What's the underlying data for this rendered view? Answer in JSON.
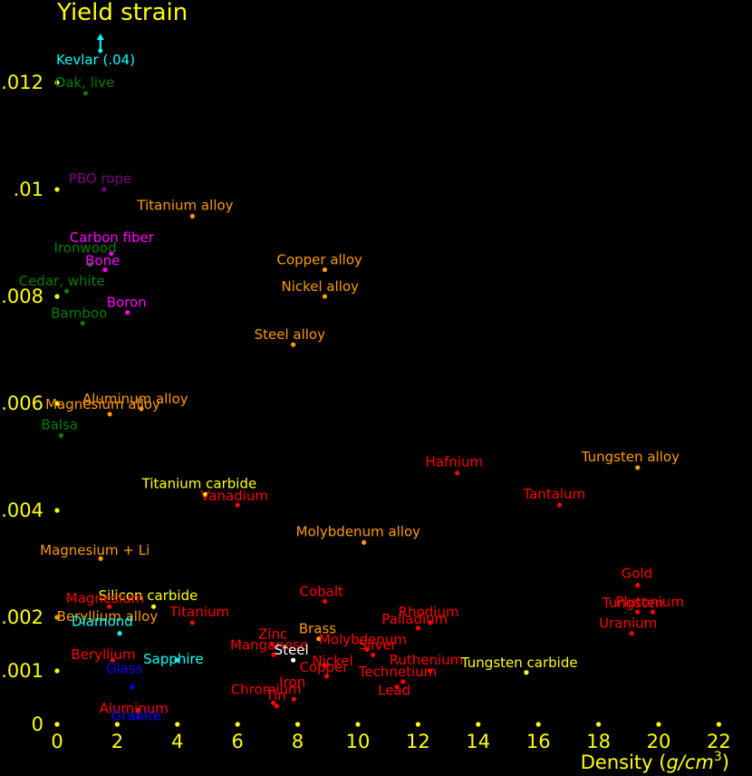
{
  "chart_data": {
    "type": "scatter",
    "title": "Yield strain",
    "xlabel": {
      "prefix": "Density (",
      "unit": "g/cm",
      "exponent": "3",
      "suffix": ")"
    },
    "xlim": [
      0,
      22
    ],
    "ylim": [
      0,
      0.012
    ],
    "x_ticks": [
      {
        "v": 0,
        "label": "0"
      },
      {
        "v": 2,
        "label": "2"
      },
      {
        "v": 4,
        "label": "4"
      },
      {
        "v": 6,
        "label": "6"
      },
      {
        "v": 8,
        "label": "8"
      },
      {
        "v": 10,
        "label": "10"
      },
      {
        "v": 12,
        "label": "12"
      },
      {
        "v": 14,
        "label": "14"
      },
      {
        "v": 16,
        "label": "16"
      },
      {
        "v": 18,
        "label": "18"
      },
      {
        "v": 20,
        "label": "20"
      },
      {
        "v": 22,
        "label": "22"
      }
    ],
    "y_ticks": [
      {
        "v": 0,
        "label": "0"
      },
      {
        "v": 0.001,
        "label": ".001"
      },
      {
        "v": 0.002,
        "label": ".002"
      },
      {
        "v": 0.004,
        "label": ".004"
      },
      {
        "v": 0.006,
        "label": ".006"
      },
      {
        "v": 0.008,
        "label": ".008"
      },
      {
        "v": 0.01,
        "label": ".01"
      },
      {
        "v": 0.012,
        "label": ".012"
      }
    ],
    "axis_color": "#ffff00",
    "grid": false,
    "off_scale_arrow": {
      "label": "Kevlar (.04)",
      "x": 1.44,
      "color": "#00ffff"
    },
    "points": [
      {
        "label": "Oak, live",
        "x": 0.95,
        "y": 0.0118,
        "color": "#008000"
      },
      {
        "label": "PBO rope",
        "x": 1.56,
        "y": 0.01,
        "color": "#800080"
      },
      {
        "label": "Titanium alloy",
        "x": 4.5,
        "y": 0.0095,
        "color": "#ff9900"
      },
      {
        "label": "Carbon fiber",
        "x": 1.8,
        "y": 0.0088,
        "color": "#ff00ff"
      },
      {
        "label": "Ironwood",
        "x": 1.1,
        "y": 0.0086,
        "color": "#008000"
      },
      {
        "label": "Bone",
        "x": 1.6,
        "y": 0.0085,
        "color": "#ff00ff"
      },
      {
        "label": "Copper alloy",
        "x": 8.9,
        "y": 0.0085,
        "color": "#ff9900"
      },
      {
        "label": "Cedar, white",
        "x": 0.32,
        "y": 0.0081,
        "color": "#008000"
      },
      {
        "label": "Nickel alloy",
        "x": 8.9,
        "y": 0.008,
        "color": "#ff9900"
      },
      {
        "label": "Boron",
        "x": 2.34,
        "y": 0.0077,
        "color": "#ff00ff"
      },
      {
        "label": "Bamboo",
        "x": 0.85,
        "y": 0.0075,
        "color": "#008000"
      },
      {
        "label": "Steel alloy",
        "x": 7.85,
        "y": 0.0071,
        "color": "#ff9900"
      },
      {
        "label": "Aluminum alloy",
        "x": 2.8,
        "y": 0.0059,
        "color": "#ff9900"
      },
      {
        "label": "Magnesium alloy",
        "x": 1.75,
        "y": 0.0058,
        "color": "#ff9900"
      },
      {
        "label": "Balsa",
        "x": 0.13,
        "y": 0.0054,
        "color": "#008000"
      },
      {
        "label": "Hafnium",
        "x": 13.3,
        "y": 0.0047,
        "color": "#ff0000"
      },
      {
        "label": "Tungsten alloy",
        "x": 19.3,
        "y": 0.0048,
        "color": "#ff9900"
      },
      {
        "label": "Titanium carbide",
        "x": 4.93,
        "y": 0.0043,
        "color": "#ffff00"
      },
      {
        "label": "Vanadium",
        "x": 6.0,
        "y": 0.0041,
        "color": "#ff0000"
      },
      {
        "label": "Tantalum",
        "x": 16.7,
        "y": 0.0041,
        "color": "#ff0000"
      },
      {
        "label": "Molybdenum alloy",
        "x": 10.2,
        "y": 0.0034,
        "color": "#ff9900"
      },
      {
        "label": "Magnesium + Li",
        "x": 1.45,
        "y": 0.0031,
        "color": "#ff9900"
      },
      {
        "label": "Gold",
        "x": 19.3,
        "y": 0.0026,
        "color": "#ff0000"
      },
      {
        "label": "Cobalt",
        "x": 8.9,
        "y": 0.0023,
        "color": "#ff0000"
      },
      {
        "label": "Silicon carbide",
        "x": 3.21,
        "y": 0.0022,
        "color": "#ffff00"
      },
      {
        "label": "Magnesium",
        "x": 1.74,
        "y": 0.0022,
        "color": "#ff0000"
      },
      {
        "label": "Plutonium",
        "x": 19.8,
        "y": 0.0021,
        "color": "#ff0000"
      },
      {
        "label": "Tungsten",
        "x": 19.3,
        "y": 0.0021,
        "color": "#ff0000"
      },
      {
        "label": "Titanium",
        "x": 4.5,
        "y": 0.0019,
        "color": "#ff0000"
      },
      {
        "label": "Rhodium",
        "x": 12.4,
        "y": 0.0019,
        "color": "#ff0000"
      },
      {
        "label": "Palladium",
        "x": 12.0,
        "y": 0.0018,
        "color": "#ff0000"
      },
      {
        "label": "Beryllium alloy",
        "x": 0.02,
        "y": 0.002,
        "color": "#ff9900"
      },
      {
        "label": "Brass",
        "x": 8.7,
        "y": 0.0016,
        "color": "#ff9900"
      },
      {
        "label": "Uranium",
        "x": 19.1,
        "y": 0.0017,
        "color": "#ff0000"
      },
      {
        "label": "Diamond",
        "x": 2.08,
        "y": 0.0017,
        "color": "#00ffff"
      },
      {
        "label": "Zinc",
        "x": 7.14,
        "y": 0.0015,
        "color": "#ff0000"
      },
      {
        "label": "Molybdenum",
        "x": 10.3,
        "y": 0.0014,
        "color": "#ff0000"
      },
      {
        "label": "Manganese",
        "x": 7.2,
        "y": 0.0013,
        "color": "#ff0000"
      },
      {
        "label": "Silver",
        "x": 10.5,
        "y": 0.0013,
        "color": "#ff0000"
      },
      {
        "label": "Steel",
        "x": 7.85,
        "y": 0.0012,
        "color": "#ffffff"
      },
      {
        "label": "Sapphire",
        "x": 3.98,
        "y": 0.0012,
        "color": "#00ffff"
      },
      {
        "label": "Beryllium",
        "x": 1.85,
        "y": 0.0012,
        "color": "#ff0000"
      },
      {
        "label": "Nickel",
        "x": 8.9,
        "y": 0.0011,
        "color": "#ff0000"
      },
      {
        "label": "Ruthenium",
        "x": 12.4,
        "y": 0.001,
        "color": "#ff0000"
      },
      {
        "label": "Tungsten carbide",
        "x": 15.6,
        "y": 0.00097,
        "color": "#ffff00"
      },
      {
        "label": "Copper",
        "x": 8.96,
        "y": 0.0009,
        "color": "#ff0000"
      },
      {
        "label": "Technetium",
        "x": 11.5,
        "y": 0.0008,
        "color": "#ff0000"
      },
      {
        "label": "Glass",
        "x": 2.5,
        "y": 0.0007,
        "color": "#0000ff"
      },
      {
        "label": "Iron",
        "x": 7.87,
        "y": 0.00047,
        "color": "#ff0000"
      },
      {
        "label": "Lead",
        "x": 11.3,
        "y": 0.0007,
        "color": "#ff0000"
      },
      {
        "label": "Chromium",
        "x": 7.19,
        "y": 0.0004,
        "color": "#ff0000"
      },
      {
        "label": "Tin",
        "x": 7.3,
        "y": 0.00034,
        "color": "#ff0000"
      },
      {
        "label": "Aluminum",
        "x": 2.7,
        "y": 0.00026,
        "color": "#ff0000"
      },
      {
        "label": "Granite",
        "x": 2.7,
        "y": 0.00014,
        "color": "#0000ff"
      }
    ]
  }
}
